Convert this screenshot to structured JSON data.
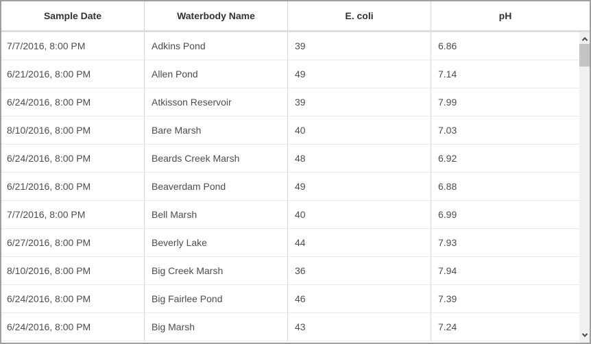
{
  "table": {
    "columns": [
      {
        "id": "sample_date",
        "label": "Sample Date"
      },
      {
        "id": "waterbody_name",
        "label": "Waterbody Name"
      },
      {
        "id": "e_coli",
        "label": "E. coli"
      },
      {
        "id": "ph",
        "label": "pH"
      }
    ],
    "rows": [
      {
        "sample_date": "7/7/2016, 8:00 PM",
        "waterbody_name": "Adkins Pond",
        "e_coli": "39",
        "ph": "6.86"
      },
      {
        "sample_date": "6/21/2016, 8:00 PM",
        "waterbody_name": "Allen Pond",
        "e_coli": "49",
        "ph": "7.14"
      },
      {
        "sample_date": "6/24/2016, 8:00 PM",
        "waterbody_name": "Atkisson Reservoir",
        "e_coli": "39",
        "ph": "7.99"
      },
      {
        "sample_date": "8/10/2016, 8:00 PM",
        "waterbody_name": "Bare Marsh",
        "e_coli": "40",
        "ph": "7.03"
      },
      {
        "sample_date": "6/24/2016, 8:00 PM",
        "waterbody_name": "Beards Creek Marsh",
        "e_coli": "48",
        "ph": "6.92"
      },
      {
        "sample_date": "6/21/2016, 8:00 PM",
        "waterbody_name": "Beaverdam Pond",
        "e_coli": "49",
        "ph": "6.88"
      },
      {
        "sample_date": "7/7/2016, 8:00 PM",
        "waterbody_name": "Bell Marsh",
        "e_coli": "40",
        "ph": "6.99"
      },
      {
        "sample_date": "6/27/2016, 8:00 PM",
        "waterbody_name": "Beverly Lake",
        "e_coli": "44",
        "ph": "7.93"
      },
      {
        "sample_date": "8/10/2016, 8:00 PM",
        "waterbody_name": "Big Creek Marsh",
        "e_coli": "36",
        "ph": "7.94"
      },
      {
        "sample_date": "6/24/2016, 8:00 PM",
        "waterbody_name": "Big Fairlee Pond",
        "e_coli": "46",
        "ph": "7.39"
      },
      {
        "sample_date": "6/24/2016, 8:00 PM",
        "waterbody_name": "Big Marsh",
        "e_coli": "43",
        "ph": "7.24"
      }
    ]
  },
  "scrollbar": {
    "up_icon": "chevron-up",
    "down_icon": "chevron-down"
  },
  "colors": {
    "outer_border": "#9e9e9e",
    "header_text": "#323232",
    "body_text": "#4c4c4c",
    "column_divider": "#d6d6d6",
    "row_divider": "#e8e8e8",
    "header_divider": "#dcdcdc",
    "scrollbar_track": "#f0f0f0",
    "scrollbar_thumb": "#c4c4c4",
    "scrollbar_arrow": "#4a4a4a"
  }
}
